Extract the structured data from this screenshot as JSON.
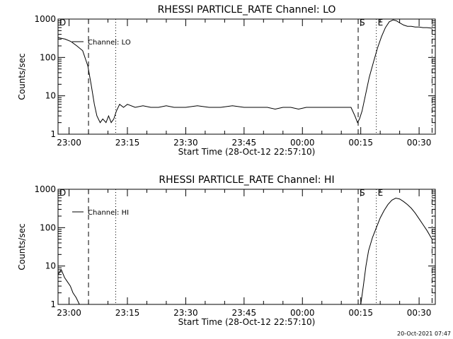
{
  "footer_timestamp": "20-Oct-2021 07:47",
  "chart_data": [
    {
      "type": "line",
      "title": "RHESSI PARTICLE_RATE Channel: LO",
      "xlabel": "Start Time (28-Oct-12 22:57:10)",
      "ylabel": "Counts/sec",
      "yscale": "log",
      "ylim": [
        1,
        1000
      ],
      "xlim": [
        "22:57:10",
        "00:34:10"
      ],
      "x_tick_labels": [
        "23:00",
        "23:15",
        "23:30",
        "23:45",
        "00:00",
        "00:15",
        "00:30"
      ],
      "y_tick_labels": [
        "1",
        "10",
        "100",
        "1000"
      ],
      "legend": "Channel: LO",
      "legend_position": "top-left",
      "markers": [
        {
          "label": "D",
          "time": "22:57:10",
          "style": "dash-dot"
        },
        {
          "label": "",
          "time": "23:05:00",
          "style": "dashed"
        },
        {
          "label": "",
          "time": "23:12:00",
          "style": "dotted"
        },
        {
          "label": "S",
          "time": "00:14:20",
          "style": "dashed"
        },
        {
          "label": "E",
          "time": "00:19:00",
          "style": "dotted"
        },
        {
          "label": "",
          "time": "00:33:20",
          "style": "dash-dot"
        }
      ],
      "series": [
        {
          "x": [
            "22:57:10",
            "22:59:00",
            "23:00:30",
            "23:02:00",
            "23:03:30",
            "23:04:50",
            "23:05:40",
            "23:06:30",
            "23:07:10",
            "23:08:00",
            "23:08:40",
            "23:09:30",
            "23:10:10",
            "23:10:50",
            "23:11:30",
            "23:12:10",
            "23:13:00",
            "23:14:00",
            "23:15:00",
            "23:17:00",
            "23:19:00",
            "23:21:00",
            "23:23:00",
            "23:25:00",
            "23:27:00",
            "23:30:00",
            "23:33:00",
            "23:36:00",
            "23:39:00",
            "23:42:00",
            "23:45:00",
            "23:48:00",
            "23:51:00",
            "23:53:00",
            "23:55:00",
            "23:57:00",
            "23:59:00",
            "00:01:00",
            "00:03:00",
            "00:05:00",
            "00:07:00",
            "00:09:00",
            "00:11:00",
            "00:12:30",
            "00:13:30",
            "00:14:10",
            "00:14:40",
            "00:15:20",
            "00:16:10",
            "00:17:10",
            "00:18:20",
            "00:19:20",
            "00:20:20",
            "00:21:20",
            "00:22:20",
            "00:23:20",
            "00:24:10",
            "00:25:00",
            "00:26:00",
            "00:27:00",
            "00:28:00",
            "00:29:00",
            "00:30:00",
            "00:31:00",
            "00:32:00",
            "00:33:20"
          ],
          "values": [
            330,
            300,
            260,
            200,
            150,
            60,
            20,
            6,
            3,
            2,
            2.5,
            2,
            3,
            2,
            2.5,
            4,
            6,
            5,
            6,
            5,
            5.5,
            5,
            5,
            5.5,
            5,
            5,
            5.5,
            5,
            5,
            5.5,
            5,
            5,
            5,
            4.5,
            5,
            5,
            4.5,
            5,
            5,
            5,
            5,
            5,
            5,
            5,
            3,
            2,
            2.5,
            4,
            10,
            30,
            80,
            180,
            350,
            600,
            850,
            950,
            900,
            800,
            700,
            650,
            650,
            620,
            620,
            600,
            600,
            580
          ]
        }
      ]
    },
    {
      "type": "line",
      "title": "RHESSI PARTICLE_RATE Channel: HI",
      "xlabel": "Start Time (28-Oct-12 22:57:10)",
      "ylabel": "Counts/sec",
      "yscale": "log",
      "ylim": [
        1,
        1000
      ],
      "xlim": [
        "22:57:10",
        "00:34:10"
      ],
      "x_tick_labels": [
        "23:00",
        "23:15",
        "23:30",
        "23:45",
        "00:00",
        "00:15",
        "00:30"
      ],
      "y_tick_labels": [
        "1",
        "10",
        "100",
        "1000"
      ],
      "legend": "Channel: HI",
      "legend_position": "top-left",
      "markers": [
        {
          "label": "D",
          "time": "22:57:10",
          "style": "dash-dot"
        },
        {
          "label": "",
          "time": "23:05:00",
          "style": "dashed"
        },
        {
          "label": "",
          "time": "23:12:00",
          "style": "dotted"
        },
        {
          "label": "S",
          "time": "00:14:20",
          "style": "dashed"
        },
        {
          "label": "E",
          "time": "00:19:00",
          "style": "dotted"
        },
        {
          "label": "",
          "time": "00:33:20",
          "style": "dash-dot"
        }
      ],
      "series": [
        {
          "x": [
            "22:57:10",
            "22:58:00",
            "22:58:50",
            "22:59:30",
            "23:00:20",
            "23:01:00",
            "23:01:50",
            "23:02:40"
          ],
          "values": [
            6,
            8,
            5,
            4,
            3,
            2,
            1.5,
            1
          ]
        },
        {
          "x": [
            "00:15:00",
            "00:15:40",
            "00:16:20",
            "00:17:00",
            "00:18:00",
            "00:19:00",
            "00:20:00",
            "00:21:00",
            "00:22:00",
            "00:23:00",
            "00:24:00",
            "00:25:00",
            "00:26:00",
            "00:27:00",
            "00:28:00",
            "00:29:00",
            "00:30:00",
            "00:31:00",
            "00:32:00",
            "00:33:20"
          ],
          "values": [
            1,
            3,
            10,
            25,
            55,
            100,
            180,
            280,
            400,
            520,
            590,
            560,
            480,
            400,
            320,
            240,
            170,
            120,
            85,
            50
          ]
        }
      ]
    }
  ]
}
